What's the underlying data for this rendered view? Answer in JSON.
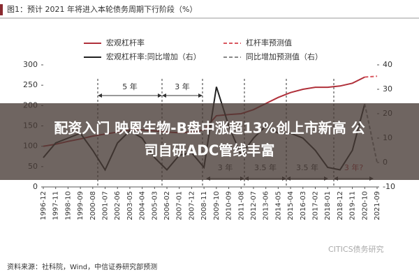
{
  "chart_data": {
    "type": "line",
    "title": "图1：预计 2021 年将进入本轮债务周期下行阶段（%）",
    "categories": [
      "1996-12",
      "1997-11",
      "1998-10",
      "1999-09",
      "2000-08",
      "2001-07",
      "2002-06",
      "2003-05",
      "2004-04",
      "2005-03",
      "2006-02",
      "2007-01",
      "2007-12",
      "2008-11",
      "2009-10",
      "2010-09",
      "2011-08",
      "2012-07",
      "2013-06",
      "2014-05",
      "2015-04",
      "2016-03",
      "2017-02",
      "2018-01",
      "2018-12",
      "2019-11",
      "2020-10",
      "2021-09"
    ],
    "series": [
      {
        "name": "宏观杠杆率",
        "color": "#b0303a",
        "dash": false,
        "values": [
          100,
          105,
          112,
          118,
          125,
          130,
          135,
          140,
          140,
          138,
          135,
          133,
          135,
          140,
          175,
          178,
          180,
          190,
          205,
          220,
          232,
          240,
          245,
          245,
          248,
          255,
          270,
          null
        ]
      },
      {
        "name": "杠杆率预测值",
        "color": "#d9575f",
        "dash": true,
        "values": [
          null,
          null,
          null,
          null,
          null,
          null,
          null,
          null,
          null,
          null,
          null,
          null,
          null,
          null,
          null,
          null,
          null,
          null,
          null,
          null,
          null,
          null,
          null,
          null,
          null,
          null,
          270,
          272
        ]
      },
      {
        "name": "宏观杠杆率:同比增加（右）",
        "color": "#222222",
        "dash": false,
        "axis": "y2",
        "values": [
          2,
          8,
          10,
          12,
          5,
          -3,
          8,
          13,
          10,
          2,
          -3,
          3,
          4,
          -2,
          31,
          15,
          3,
          10,
          15,
          12,
          12,
          10,
          5,
          -2,
          -3,
          5,
          24,
          null
        ]
      },
      {
        "name": "同比增加预测值（右）",
        "color": "#888888",
        "dash": true,
        "axis": "y2",
        "values": [
          null,
          null,
          null,
          null,
          null,
          null,
          null,
          null,
          null,
          null,
          null,
          null,
          null,
          null,
          null,
          null,
          null,
          null,
          null,
          null,
          null,
          null,
          null,
          null,
          null,
          null,
          24,
          0
        ]
      }
    ],
    "ylim": [
      0,
      300
    ],
    "yticks": [
      0,
      50,
      100,
      150,
      200,
      250,
      300
    ],
    "y2lim": [
      -10,
      40
    ],
    "y2ticks": [
      -10,
      0,
      10,
      20,
      30,
      40
    ],
    "annotations": [
      "5 年",
      "3 年",
      "3 年",
      "3.5 年",
      "3.5 年",
      "3 年?"
    ],
    "source": "资料来源：社科院，Wind，中信证券研究部预测",
    "watermark": "CITICS债务研究"
  },
  "banner_lines": [
    "配资入门 映恩生物-B盘中涨超13%创上市新高 公",
    "司自研ADC管线丰富"
  ]
}
